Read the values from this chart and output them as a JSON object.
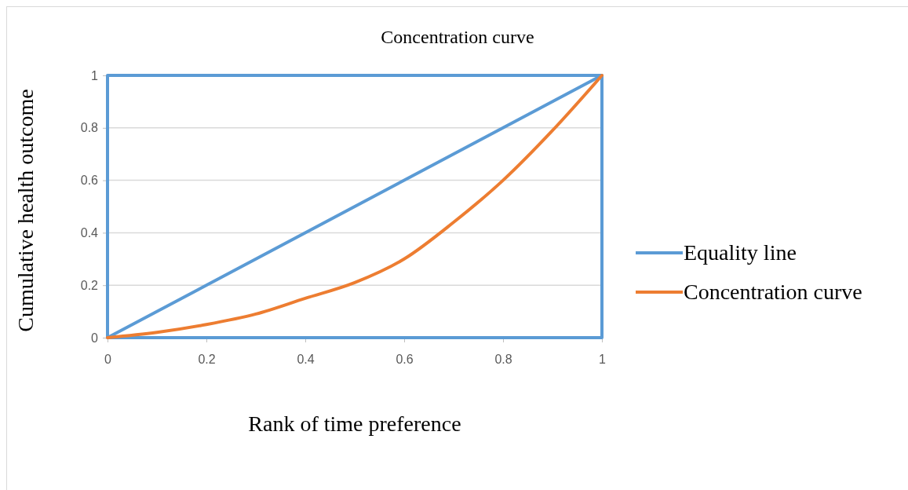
{
  "chart_data": {
    "type": "line",
    "title": "Concentration curve",
    "xlabel": "Rank of time preference",
    "ylabel": "Cumulative health outcome",
    "xlim": [
      0,
      1
    ],
    "ylim": [
      0,
      1
    ],
    "xticks": [
      0,
      0.2,
      0.4,
      0.6,
      0.8,
      1
    ],
    "yticks": [
      0,
      0.2,
      0.4,
      0.6,
      0.8,
      1
    ],
    "grid": "y",
    "legend": "right",
    "marker": "none",
    "line_style": "solid",
    "series": [
      {
        "name": "Equality line",
        "color": "#5b9bd5",
        "x": [
          0,
          1,
          1,
          0,
          0,
          1
        ],
        "values": [
          0,
          1,
          0,
          0,
          1,
          1
        ]
      },
      {
        "name": "Concentration curve",
        "color": "#ed7d31",
        "x": [
          0,
          0.1,
          0.2,
          0.3,
          0.4,
          0.5,
          0.6,
          0.7,
          0.8,
          0.9,
          1
        ],
        "values": [
          0,
          0.02,
          0.05,
          0.09,
          0.15,
          0.21,
          0.3,
          0.44,
          0.6,
          0.79,
          1
        ]
      }
    ]
  }
}
